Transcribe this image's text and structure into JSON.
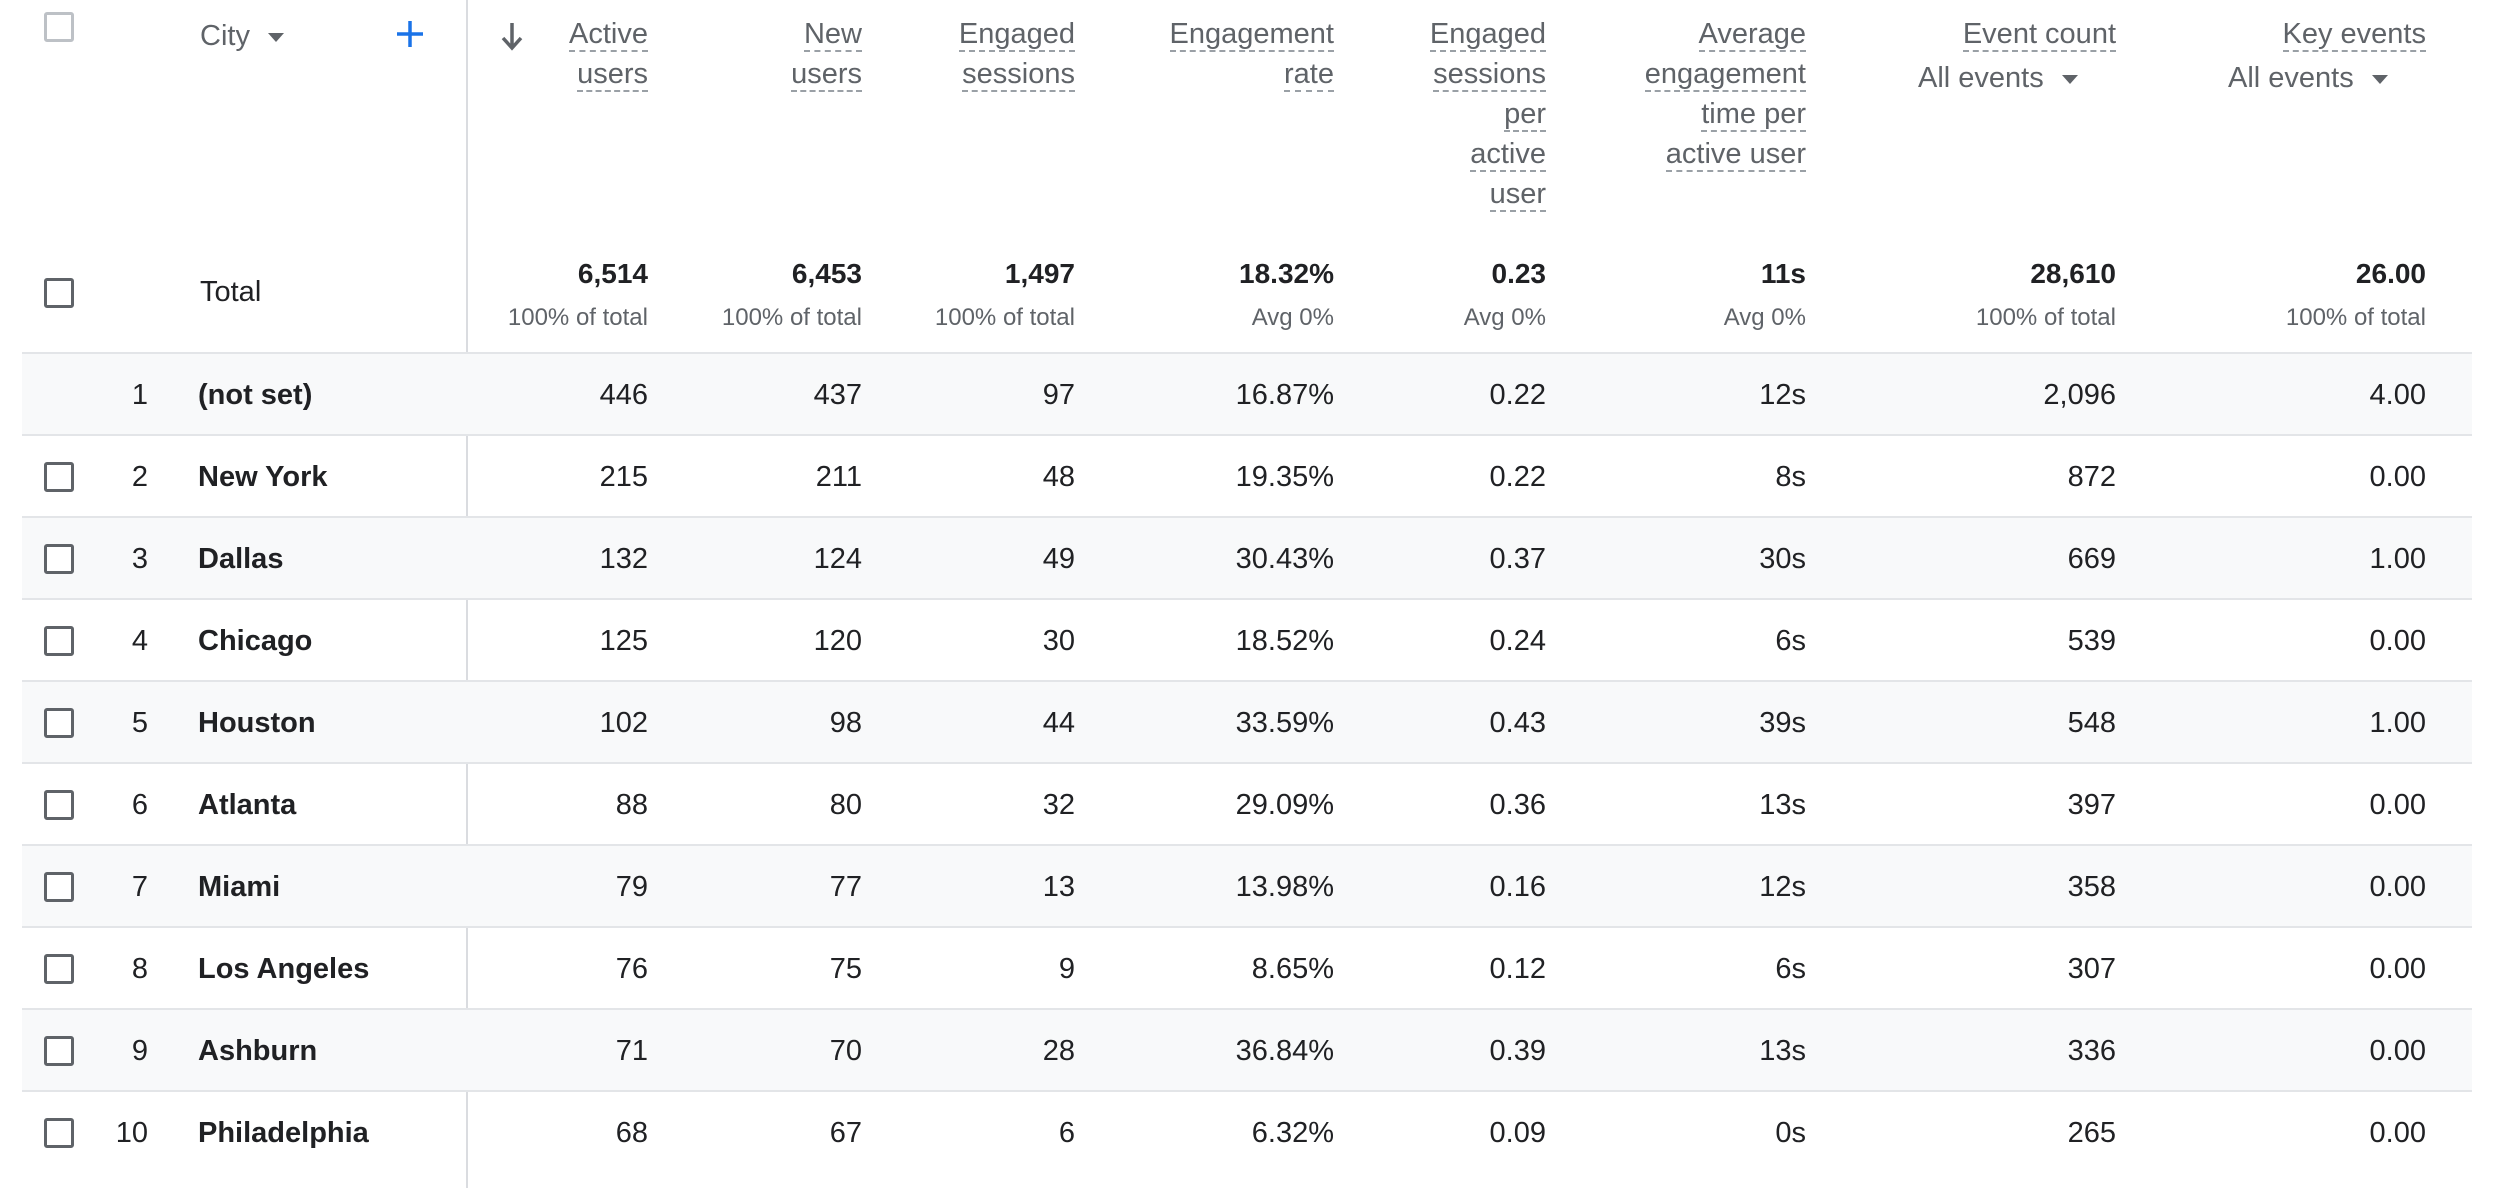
{
  "header": {
    "dimension_label": "City",
    "sort_icon": "arrow-down-icon",
    "add_icon": "plus-icon",
    "columns": [
      {
        "lines": [
          "Active",
          "users"
        ]
      },
      {
        "lines": [
          "New",
          "users"
        ]
      },
      {
        "lines": [
          "Engaged",
          "sessions"
        ]
      },
      {
        "lines": [
          "Engagement",
          "rate"
        ]
      },
      {
        "lines": [
          "Engaged",
          "sessions",
          "per",
          "active",
          "user"
        ]
      },
      {
        "lines": [
          "Average",
          "engagement",
          "time per",
          "active user"
        ]
      },
      {
        "lines": [
          "Event count"
        ],
        "filter": "All events"
      },
      {
        "lines": [
          "Key events"
        ],
        "filter": "All events"
      }
    ]
  },
  "totals": {
    "label": "Total",
    "values": [
      "6,514",
      "6,453",
      "1,497",
      "18.32%",
      "0.23",
      "11s",
      "28,610",
      "26.00"
    ],
    "subs": [
      "100% of total",
      "100% of total",
      "100% of total",
      "Avg 0%",
      "Avg 0%",
      "Avg 0%",
      "100% of total",
      "100% of total"
    ]
  },
  "rows": [
    {
      "rank": "1",
      "city": "(not set)",
      "values": [
        "446",
        "437",
        "97",
        "16.87%",
        "0.22",
        "12s",
        "2,096",
        "4.00"
      ]
    },
    {
      "rank": "2",
      "city": "New York",
      "values": [
        "215",
        "211",
        "48",
        "19.35%",
        "0.22",
        "8s",
        "872",
        "0.00"
      ]
    },
    {
      "rank": "3",
      "city": "Dallas",
      "values": [
        "132",
        "124",
        "49",
        "30.43%",
        "0.37",
        "30s",
        "669",
        "1.00"
      ]
    },
    {
      "rank": "4",
      "city": "Chicago",
      "values": [
        "125",
        "120",
        "30",
        "18.52%",
        "0.24",
        "6s",
        "539",
        "0.00"
      ]
    },
    {
      "rank": "5",
      "city": "Houston",
      "values": [
        "102",
        "98",
        "44",
        "33.59%",
        "0.43",
        "39s",
        "548",
        "1.00"
      ]
    },
    {
      "rank": "6",
      "city": "Atlanta",
      "values": [
        "88",
        "80",
        "32",
        "29.09%",
        "0.36",
        "13s",
        "397",
        "0.00"
      ]
    },
    {
      "rank": "7",
      "city": "Miami",
      "values": [
        "79",
        "77",
        "13",
        "13.98%",
        "0.16",
        "12s",
        "358",
        "0.00"
      ]
    },
    {
      "rank": "8",
      "city": "Los Angeles",
      "values": [
        "76",
        "75",
        "9",
        "8.65%",
        "0.12",
        "6s",
        "307",
        "0.00"
      ]
    },
    {
      "rank": "9",
      "city": "Ashburn",
      "values": [
        "71",
        "70",
        "28",
        "36.84%",
        "0.39",
        "13s",
        "336",
        "0.00"
      ]
    },
    {
      "rank": "10",
      "city": "Philadelphia",
      "values": [
        "68",
        "67",
        "6",
        "6.32%",
        "0.09",
        "0s",
        "265",
        "0.00"
      ]
    }
  ]
}
